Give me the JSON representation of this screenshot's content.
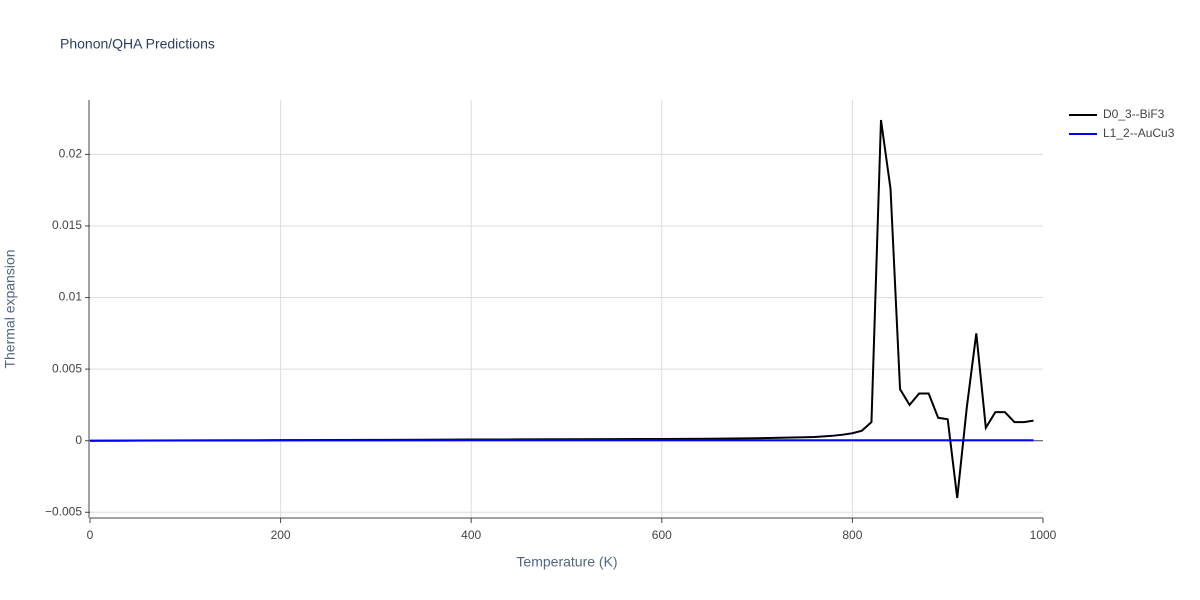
{
  "chart_data": {
    "type": "line",
    "title": "Phonon/QHA Predictions",
    "x_label": "Temperature (K)",
    "y_label": "Thermal expansion",
    "xlim": [
      0,
      1000
    ],
    "xticks": [
      0,
      200,
      400,
      600,
      800,
      1000
    ],
    "ylim": [
      -0.0054,
      0.0238
    ],
    "yticks": [
      {
        "value": -0.005,
        "label": "−0.005"
      },
      0,
      0.005,
      0.01,
      0.015,
      0.02
    ],
    "grid": true,
    "legend": "outside-top-right",
    "series": [
      {
        "name": "D0_3--BiF3",
        "color": "#000000",
        "x": [
          0,
          50,
          100,
          150,
          200,
          250,
          300,
          350,
          400,
          450,
          500,
          550,
          600,
          650,
          700,
          750,
          760,
          770,
          780,
          790,
          800,
          810,
          820,
          830,
          840,
          850,
          860,
          870,
          880,
          890,
          900,
          910,
          920,
          930,
          940,
          950,
          960,
          970,
          980,
          990
        ],
        "values": [
          0,
          1e-05,
          2e-05,
          3e-05,
          4e-05,
          5e-05,
          6e-05,
          7e-05,
          8e-05,
          9e-05,
          0.0001,
          0.00011,
          0.00012,
          0.00014,
          0.00017,
          0.00024,
          0.00026,
          0.0003,
          0.00035,
          0.00042,
          0.00052,
          0.0007,
          0.0013,
          0.0224,
          0.0176,
          0.0036,
          0.0025,
          0.0033,
          0.0033,
          0.0016,
          0.0015,
          -0.004,
          0.0023,
          0.0075,
          0.0009,
          0.002,
          0.002,
          0.0013,
          0.0013,
          0.0014
        ]
      },
      {
        "name": "L1_2--AuCu3",
        "color": "#0000ff",
        "x": [
          0,
          100,
          200,
          300,
          400,
          500,
          600,
          700,
          800,
          900,
          990
        ],
        "values": [
          0,
          1e-05,
          2e-05,
          2e-05,
          3e-05,
          3e-05,
          3e-05,
          3e-05,
          3e-05,
          3e-05,
          3e-05
        ]
      }
    ]
  }
}
